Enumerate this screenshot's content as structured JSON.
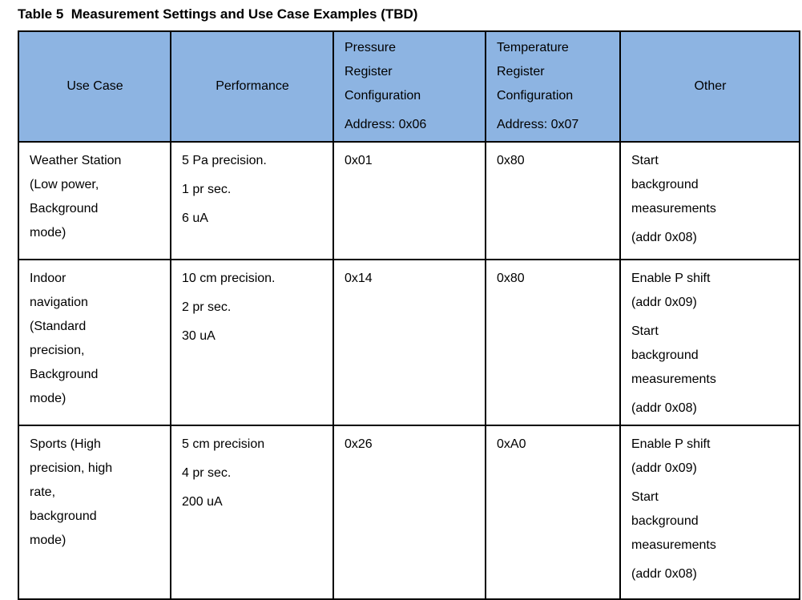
{
  "caption": "Table 5  Measurement Settings and Use Case Examples (TBD)",
  "colors": {
    "header_bg": "#8DB4E2",
    "border": "#000000",
    "text": "#000000",
    "page_bg": "#FFFFFF"
  },
  "table": {
    "headers": {
      "use_case": [
        "Use Case"
      ],
      "performance": [
        "Performance"
      ],
      "pressure": [
        "Pressure\nRegister\nConfiguration",
        "Address: 0x06"
      ],
      "temperature": [
        "Temperature\nRegister\nConfiguration",
        "Address: 0x07"
      ],
      "other": [
        "Other"
      ]
    },
    "rows": [
      {
        "use_case": [
          "Weather Station\n(Low power,\nBackground\nmode)"
        ],
        "performance": [
          "5 Pa precision.",
          "1 pr sec.",
          "6 uA"
        ],
        "pressure": [
          "0x01"
        ],
        "temperature": [
          "0x80"
        ],
        "other": [
          "Start\nbackground\nmeasurements",
          " (addr 0x08)"
        ]
      },
      {
        "use_case": [
          "Indoor\nnavigation\n(Standard\nprecision,\nBackground\nmode)"
        ],
        "performance": [
          "10 cm precision.",
          "2 pr sec.",
          "30 uA"
        ],
        "pressure": [
          "0x14"
        ],
        "temperature": [
          "0x80"
        ],
        "other": [
          "Enable P shift\n(addr 0x09)",
          "Start\nbackground\nmeasurements",
          " (addr 0x08)"
        ]
      },
      {
        "use_case": [
          "Sports (High\nprecision, high\nrate,\nbackground\nmode)"
        ],
        "performance": [
          "5 cm precision",
          "4 pr sec.",
          "200 uA"
        ],
        "pressure": [
          "0x26"
        ],
        "temperature": [
          "0xA0"
        ],
        "other": [
          "Enable P shift\n(addr 0x09)",
          "Start\nbackground\nmeasurements",
          "(addr 0x08)"
        ]
      }
    ]
  }
}
